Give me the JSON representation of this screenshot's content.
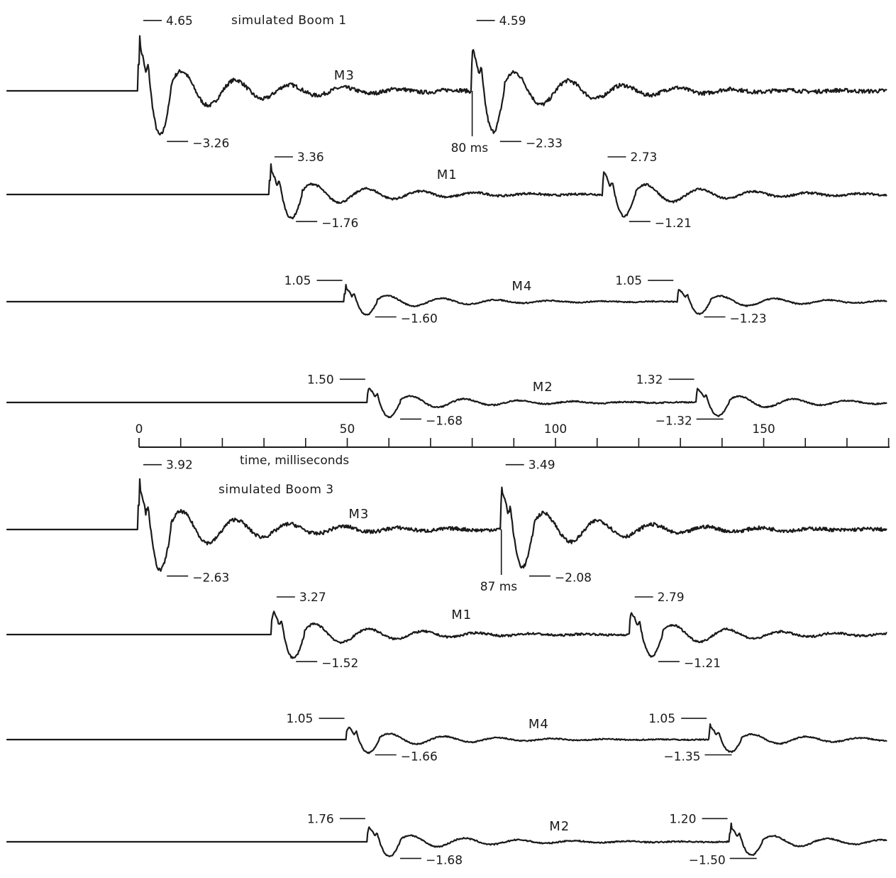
{
  "chart_data": {
    "type": "line",
    "xlabel": "time, milliseconds",
    "x_ticks": [
      0,
      50,
      100,
      150
    ],
    "xlim": [
      0,
      180
    ],
    "panels": [
      {
        "title": "simulated Boom 1",
        "traces": [
          {
            "name": "M3",
            "onset": 0,
            "amp": 1.0,
            "lag": 80,
            "lag_label": "80 ms",
            "peaks": [
              {
                "label": "4.65",
                "t": 0
              },
              {
                "label": "4.59",
                "t": 80
              }
            ],
            "troughs": [
              {
                "label": "-3.26",
                "t": 6
              },
              {
                "label": "-2.33",
                "t": 86
              }
            ]
          },
          {
            "name": "M1",
            "onset": 31.5,
            "amp": 0.72,
            "lag": 80,
            "peaks": [
              {
                "label": "3.36",
                "t": 31.5
              },
              {
                "label": "2.73",
                "t": 111.5
              }
            ],
            "troughs": [
              {
                "label": "-1.76",
                "t": 37
              },
              {
                "label": "-1.21",
                "t": 117
              }
            ]
          },
          {
            "name": "M4",
            "onset": 49.5,
            "amp": 0.55,
            "lag": 80,
            "peaks": [
              {
                "label": "1.05",
                "t": 49.5
              },
              {
                "label": "1.05",
                "t": 129
              }
            ],
            "troughs": [
              {
                "label": "-1.60",
                "t": 56
              },
              {
                "label": "-1.23",
                "t": 135
              }
            ]
          },
          {
            "name": "M2",
            "onset": 55,
            "amp": 0.6,
            "lag": 79,
            "peaks": [
              {
                "label": "1.50",
                "t": 55
              },
              {
                "label": "1.32",
                "t": 134
              }
            ],
            "troughs": [
              {
                "label": "-1.68",
                "t": 62
              },
              {
                "label": "-1.32",
                "t": 141
              }
            ]
          }
        ]
      },
      {
        "title": "simulated Boom 3",
        "traces": [
          {
            "name": "M3",
            "onset": 0,
            "amp": 0.92,
            "lag": 87,
            "lag_label": "87 ms",
            "peaks": [
              {
                "label": "3.92",
                "t": 0
              },
              {
                "label": "3.49",
                "t": 87
              }
            ],
            "troughs": [
              {
                "label": "-2.63",
                "t": 6
              },
              {
                "label": "-2.08",
                "t": 93
              }
            ]
          },
          {
            "name": "M1",
            "onset": 32,
            "amp": 0.72,
            "lag": 86,
            "peaks": [
              {
                "label": "3.27",
                "t": 32
              },
              {
                "label": "2.79",
                "t": 118
              }
            ],
            "troughs": [
              {
                "label": "-1.52",
                "t": 37
              },
              {
                "label": "-1.21",
                "t": 124
              }
            ]
          },
          {
            "name": "M4",
            "onset": 50,
            "amp": 0.55,
            "lag": 87,
            "peaks": [
              {
                "label": "1.05",
                "t": 50
              },
              {
                "label": "1.05",
                "t": 137
              }
            ],
            "troughs": [
              {
                "label": "-1.66",
                "t": 56
              },
              {
                "label": "-1.35",
                "t": 143
              }
            ]
          },
          {
            "name": "M2",
            "onset": 55,
            "amp": 0.6,
            "lag": 87,
            "peaks": [
              {
                "label": "1.76",
                "t": 55
              },
              {
                "label": "1.20",
                "t": 142
              }
            ],
            "troughs": [
              {
                "label": "-1.68",
                "t": 62
              },
              {
                "label": "-1.50",
                "t": 149
              }
            ]
          }
        ]
      }
    ]
  }
}
